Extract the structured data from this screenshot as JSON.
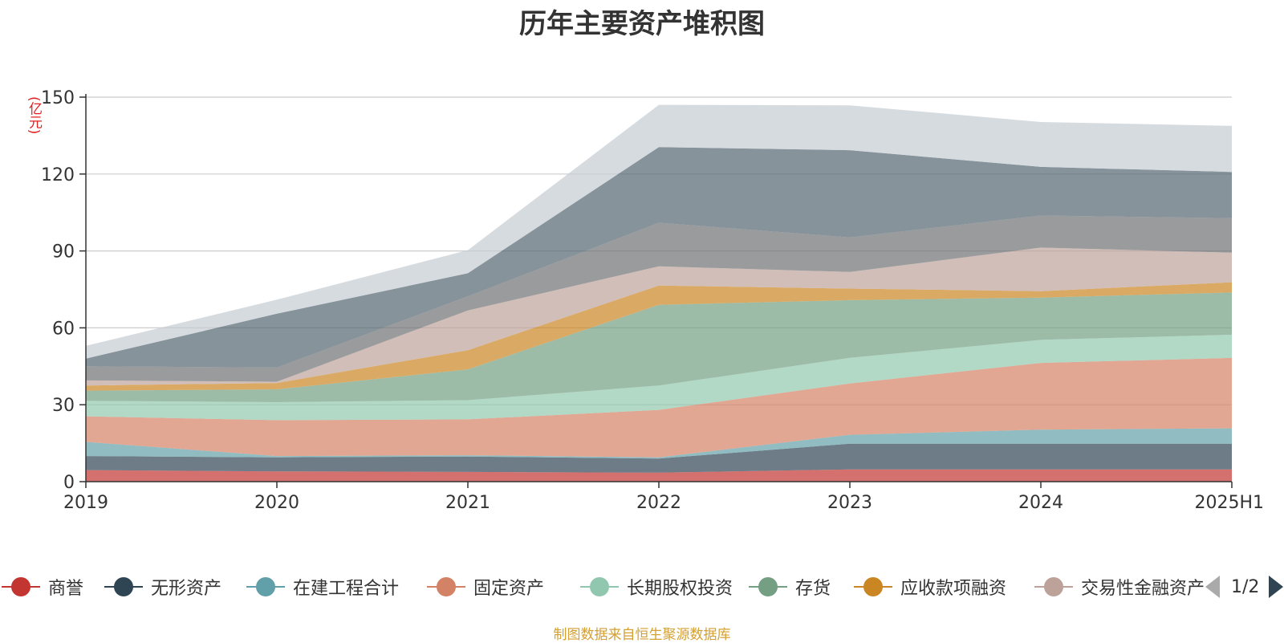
{
  "chart_data": {
    "type": "area",
    "stacked": true,
    "title": "历年主要资产堆积图",
    "unit_label": "(亿元)",
    "categories": [
      "2019",
      "2020",
      "2021",
      "2022",
      "2023",
      "2024",
      "2025H1"
    ],
    "ylim": [
      0,
      150
    ],
    "yticks": [
      0,
      30,
      60,
      90,
      120,
      150
    ],
    "grid": true,
    "series": [
      {
        "name": "商誉",
        "color": "#c23531",
        "values": [
          4.5,
          4.0,
          3.8,
          3.5,
          4.8,
          4.8,
          4.8
        ]
      },
      {
        "name": "无形资产",
        "color": "#2f4554",
        "values": [
          5.5,
          5.5,
          6.0,
          5.5,
          10.0,
          10.0,
          10.0
        ]
      },
      {
        "name": "在建工程合计",
        "color": "#61a0a8",
        "values": [
          5.5,
          0.5,
          0.5,
          0.5,
          3.5,
          5.5,
          6.0
        ]
      },
      {
        "name": "固定资产",
        "color": "#d48265",
        "values": [
          10.0,
          14.0,
          14.0,
          18.5,
          20.0,
          26.0,
          27.5
        ]
      },
      {
        "name": "长期股权投资",
        "color": "#91c7ae",
        "values": [
          6.0,
          7.0,
          7.5,
          9.5,
          10.0,
          9.0,
          9.0
        ]
      },
      {
        "name": "存货",
        "color": "#749f83",
        "values": [
          4.0,
          5.0,
          12.0,
          31.5,
          22.5,
          16.5,
          16.5
        ]
      },
      {
        "name": "应收款项融资",
        "color": "#ca8622",
        "values": [
          2.0,
          2.5,
          7.5,
          7.5,
          4.5,
          2.5,
          4.0
        ]
      },
      {
        "name": "交易性金融资产",
        "color": "#bda29a",
        "values": [
          2.0,
          0.5,
          15.5,
          7.5,
          6.5,
          17.0,
          11.5
        ]
      },
      {
        "name": "",
        "color": "#6e7074",
        "values": [
          5.5,
          5.5,
          5.5,
          17.0,
          13.5,
          12.5,
          13.5
        ]
      },
      {
        "name": "",
        "color": "#546570",
        "values": [
          3.0,
          21.0,
          9.0,
          29.5,
          34.0,
          19.0,
          18.0
        ]
      },
      {
        "name": "",
        "color": "#c4ccd3",
        "values": [
          5.0,
          5.5,
          9.0,
          16.5,
          17.5,
          17.5,
          18.0
        ]
      }
    ],
    "legend_visible": [
      "商誉",
      "无形资产",
      "在建工程合计",
      "固定资产",
      "长期股权投资",
      "存货",
      "应收款项融资",
      "交易性金融资产"
    ],
    "legend_placement": "bottom"
  },
  "legend": {
    "items": [
      {
        "label": "商誉",
        "color": "#c23531"
      },
      {
        "label": "无形资产",
        "color": "#2f4554"
      },
      {
        "label": "在建工程合计",
        "color": "#61a0a8"
      },
      {
        "label": "固定资产",
        "color": "#d48265"
      },
      {
        "label": "长期股权投资",
        "color": "#91c7ae"
      },
      {
        "label": "存货",
        "color": "#749f83"
      },
      {
        "label": "应收款项融资",
        "color": "#ca8622"
      },
      {
        "label": "交易性金融资产",
        "color": "#bda29a"
      }
    ],
    "page_indicator": "1/2"
  },
  "footer": {
    "source_text": "制图数据来自恒生聚源数据库"
  }
}
